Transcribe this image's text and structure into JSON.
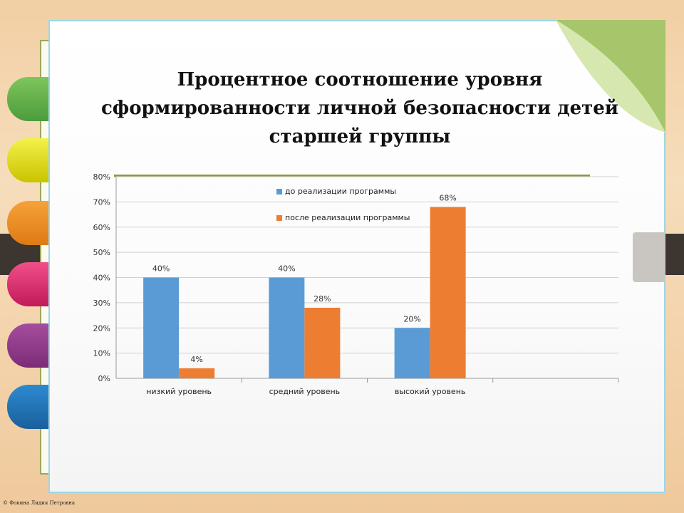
{
  "page": {
    "title": "Процентное соотношение уровня сформированности личной безопасности детей старшей группы",
    "credit": "© Фокина Лидия Петровна"
  },
  "colors": {
    "series1": "#5b9bd5",
    "series2": "#ed7d31",
    "accent_line": "#8a9a3a",
    "paper_border": "#9cd7e6"
  },
  "chart_data": {
    "type": "bar",
    "categories": [
      "низкий уровень",
      "средний уровень",
      "высокий уровень",
      ""
    ],
    "series": [
      {
        "name": "до реализации программы",
        "values": [
          40,
          40,
          20,
          null
        ],
        "labels": [
          "40%",
          "40%",
          "20%",
          ""
        ]
      },
      {
        "name": "после реализации программы",
        "values": [
          4,
          28,
          68,
          null
        ],
        "labels": [
          "4%",
          "28%",
          "68%",
          ""
        ]
      }
    ],
    "yticks": [
      "0%",
      "10%",
      "20%",
      "30%",
      "40%",
      "50%",
      "60%",
      "70%",
      "80%"
    ],
    "ylim": [
      0,
      80
    ],
    "grid": true,
    "legend_position": "top-center"
  }
}
